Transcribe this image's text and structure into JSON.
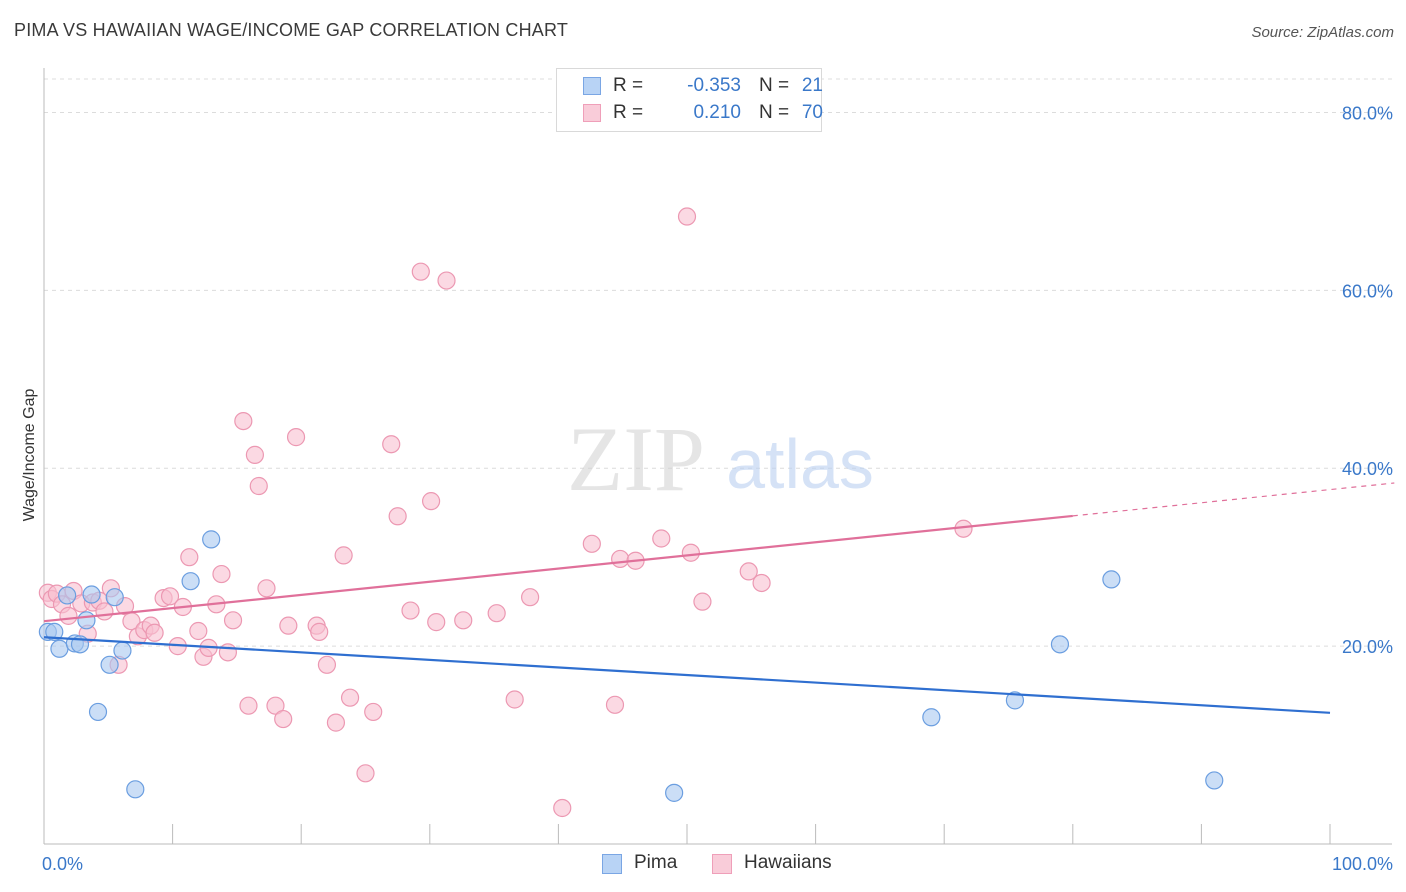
{
  "header": {
    "title": "PIMA VS HAWAIIAN WAGE/INCOME GAP CORRELATION CHART",
    "source": "Source: ZipAtlas.com"
  },
  "watermark": {
    "zip": "ZIP",
    "atlas": "atlas"
  },
  "legend": {
    "rows": [
      {
        "r_label": "R =",
        "r_value": "-0.353",
        "n_label": "N =",
        "n_value": "21"
      },
      {
        "r_label": "R =",
        "r_value": "0.210",
        "n_label": "N =",
        "n_value": "70"
      }
    ],
    "bottom": [
      "Pima",
      "Hawaiians"
    ]
  },
  "colors": {
    "pima_fill": "#a8c8f0",
    "pima_stroke": "#6b9ee0",
    "pima_line": "#2f6fd0",
    "hawaiian_fill": "#f8c0d0",
    "hawaiian_stroke": "#ec98b2",
    "hawaiian_line": "#e0709a",
    "tick_label": "#3a78c9",
    "grid": "#dcdcdc"
  },
  "chart_data": {
    "type": "scatter",
    "title": "PIMA VS HAWAIIAN WAGE/INCOME GAP CORRELATION CHART",
    "xlabel": "",
    "ylabel": "Wage/Income Gap",
    "xlim": [
      0,
      100
    ],
    "ylim": [
      0,
      85
    ],
    "x_tick_labels": [
      {
        "value": 0,
        "label": "0.0%"
      },
      {
        "value": 100,
        "label": "100.0%"
      }
    ],
    "y_tick_labels": [
      {
        "value": 20,
        "label": "20.0%"
      },
      {
        "value": 40,
        "label": "40.0%"
      },
      {
        "value": 60,
        "label": "60.0%"
      },
      {
        "value": 80,
        "label": "80.0%"
      }
    ],
    "grid": true,
    "legend_position": "top-center",
    "series": [
      {
        "name": "Pima",
        "R": -0.353,
        "N": 21,
        "trend": {
          "x0": 0,
          "y0": 21.0,
          "x1": 100,
          "y1": 12.5,
          "dashed_from": null
        },
        "points": [
          [
            0.3,
            21.6
          ],
          [
            0.8,
            21.6
          ],
          [
            1.2,
            19.7
          ],
          [
            1.8,
            25.7
          ],
          [
            2.4,
            20.3
          ],
          [
            2.8,
            20.2
          ],
          [
            3.3,
            22.9
          ],
          [
            3.7,
            25.8
          ],
          [
            4.2,
            12.6
          ],
          [
            5.1,
            17.9
          ],
          [
            5.5,
            25.5
          ],
          [
            6.1,
            19.5
          ],
          [
            7.1,
            3.9
          ],
          [
            11.4,
            27.3
          ],
          [
            13.0,
            32.0
          ],
          [
            49.0,
            3.5
          ],
          [
            69.0,
            12.0
          ],
          [
            75.5,
            13.9
          ],
          [
            79.0,
            20.2
          ],
          [
            83.0,
            27.5
          ],
          [
            91.0,
            4.9
          ]
        ]
      },
      {
        "name": "Hawaiians",
        "R": 0.21,
        "N": 70,
        "trend": {
          "x0": 0,
          "y0": 22.8,
          "x1": 100,
          "y1": 37.6,
          "dashed_from": 80
        },
        "points": [
          [
            0.3,
            26.0
          ],
          [
            0.6,
            25.3
          ],
          [
            1.0,
            25.9
          ],
          [
            1.4,
            24.7
          ],
          [
            1.9,
            23.4
          ],
          [
            2.3,
            26.2
          ],
          [
            2.9,
            24.8
          ],
          [
            3.4,
            21.4
          ],
          [
            3.8,
            24.9
          ],
          [
            4.3,
            25.1
          ],
          [
            4.7,
            23.9
          ],
          [
            5.2,
            26.5
          ],
          [
            5.8,
            17.9
          ],
          [
            6.3,
            24.5
          ],
          [
            6.8,
            22.8
          ],
          [
            7.3,
            21.1
          ],
          [
            7.8,
            21.8
          ],
          [
            8.3,
            22.3
          ],
          [
            8.6,
            21.5
          ],
          [
            9.3,
            25.4
          ],
          [
            9.8,
            25.6
          ],
          [
            10.4,
            20.0
          ],
          [
            10.8,
            24.4
          ],
          [
            11.3,
            30.0
          ],
          [
            12.0,
            21.7
          ],
          [
            12.4,
            18.8
          ],
          [
            12.8,
            19.8
          ],
          [
            13.4,
            24.7
          ],
          [
            13.8,
            28.1
          ],
          [
            14.3,
            19.3
          ],
          [
            14.7,
            22.9
          ],
          [
            15.5,
            45.3
          ],
          [
            15.9,
            13.3
          ],
          [
            16.4,
            41.5
          ],
          [
            16.7,
            38.0
          ],
          [
            17.3,
            26.5
          ],
          [
            18.0,
            13.3
          ],
          [
            18.6,
            11.8
          ],
          [
            19.0,
            22.3
          ],
          [
            19.6,
            43.5
          ],
          [
            21.2,
            22.3
          ],
          [
            21.4,
            21.6
          ],
          [
            22.0,
            17.9
          ],
          [
            22.7,
            11.4
          ],
          [
            23.3,
            30.2
          ],
          [
            23.8,
            14.2
          ],
          [
            25.0,
            5.7
          ],
          [
            25.6,
            12.6
          ],
          [
            27.0,
            42.7
          ],
          [
            27.5,
            34.6
          ],
          [
            28.5,
            24.0
          ],
          [
            29.3,
            62.1
          ],
          [
            30.1,
            36.3
          ],
          [
            30.5,
            22.7
          ],
          [
            31.3,
            61.1
          ],
          [
            32.6,
            22.9
          ],
          [
            35.2,
            23.7
          ],
          [
            36.6,
            14.0
          ],
          [
            37.8,
            25.5
          ],
          [
            40.3,
            1.8
          ],
          [
            42.6,
            31.5
          ],
          [
            44.4,
            13.4
          ],
          [
            44.8,
            29.8
          ],
          [
            46.0,
            29.6
          ],
          [
            48.0,
            32.1
          ],
          [
            50.0,
            68.3
          ],
          [
            50.3,
            30.5
          ],
          [
            51.2,
            25.0
          ],
          [
            54.8,
            28.4
          ],
          [
            55.8,
            27.1
          ],
          [
            71.5,
            33.2
          ]
        ]
      }
    ]
  }
}
